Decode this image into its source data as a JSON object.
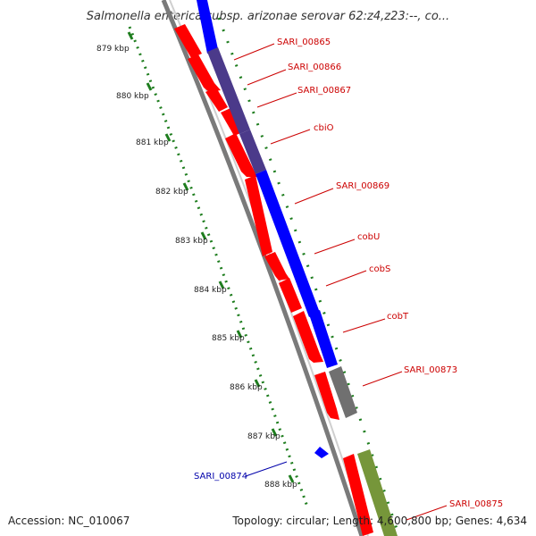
{
  "title": "Salmonella enterica subsp. arizonae serovar 62:z4,z23:--, co...",
  "footer": {
    "accession": "Accession: NC_010067",
    "topology": "Topology: circular; Length: 4,600,800 bp; Genes: 4,634"
  },
  "colors": {
    "red": "#ff0000",
    "blue": "#0000ff",
    "purple": "#4b3a8a",
    "gray": "#707070",
    "olive": "#76963a",
    "tick": "#1e7d1e",
    "label_red": "#cc0000",
    "label_blue": "#0000aa"
  },
  "kbp_labels": [
    "879 kbp",
    "880 kbp",
    "881 kbp",
    "882 kbp",
    "883 kbp",
    "884 kbp",
    "885 kbp",
    "886 kbp",
    "887 kbp",
    "888 kbp"
  ],
  "gene_labels": [
    {
      "name": "SARI_00865",
      "color": "red"
    },
    {
      "name": "SARI_00866",
      "color": "red"
    },
    {
      "name": "SARI_00867",
      "color": "red"
    },
    {
      "name": "cbiO",
      "color": "red"
    },
    {
      "name": "SARI_00869",
      "color": "red"
    },
    {
      "name": "cobU",
      "color": "red"
    },
    {
      "name": "cobS",
      "color": "red"
    },
    {
      "name": "cobT",
      "color": "red"
    },
    {
      "name": "SARI_00873",
      "color": "red"
    },
    {
      "name": "SARI_00874",
      "color": "blue"
    },
    {
      "name": "SARI_00875",
      "color": "red"
    }
  ]
}
